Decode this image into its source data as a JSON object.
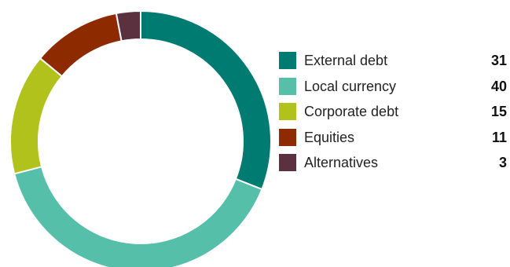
{
  "chart_data": {
    "type": "pie",
    "donut": true,
    "title": "",
    "categories": [
      "External debt",
      "Local currency",
      "Corporate debt",
      "Equities",
      "Alternatives"
    ],
    "values": [
      31,
      40,
      15,
      11,
      3
    ],
    "colors": [
      "#007b72",
      "#55bfa9",
      "#b1c21c",
      "#8e2a00",
      "#5b3140"
    ],
    "legend_position": "right",
    "start_angle_deg": 0,
    "direction": "clockwise"
  }
}
